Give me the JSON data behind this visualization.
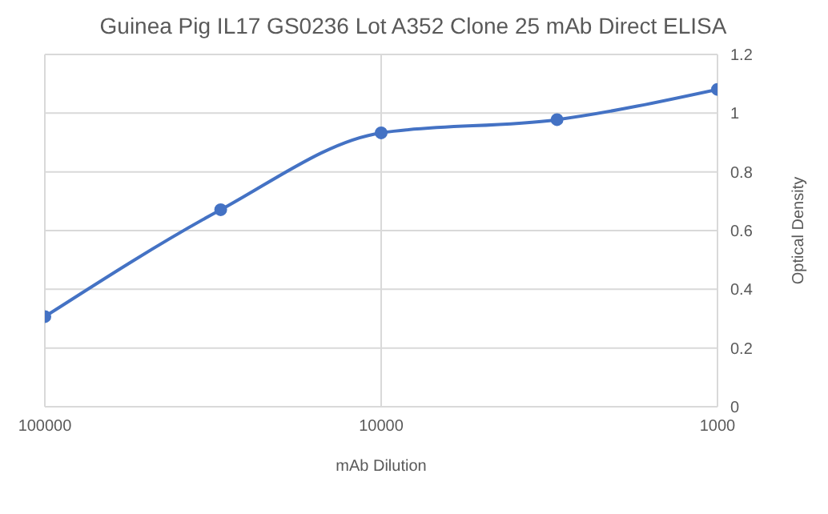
{
  "chart_data": {
    "type": "line",
    "title": "Guinea Pig IL17 GS0236 Lot A352 Clone 25 mAb Direct ELISA",
    "xlabel": "mAb Dilution",
    "ylabel": "Optical Density",
    "x": [
      100000,
      30000,
      10000,
      3000,
      1000
    ],
    "series": [
      {
        "color": "#4472c4",
        "values": [
          0.307,
          0.671,
          0.933,
          0.978,
          1.081
        ]
      }
    ],
    "log": "x",
    "xlim": [
      100000,
      1000
    ],
    "xticks": [
      100000,
      10000,
      1000
    ],
    "ylim": [
      0,
      1.2
    ],
    "yticks": [
      0,
      0.2,
      0.4,
      0.6,
      0.8,
      1,
      1.2
    ],
    "grid": true,
    "marker": "circle",
    "line_style": "solid"
  }
}
